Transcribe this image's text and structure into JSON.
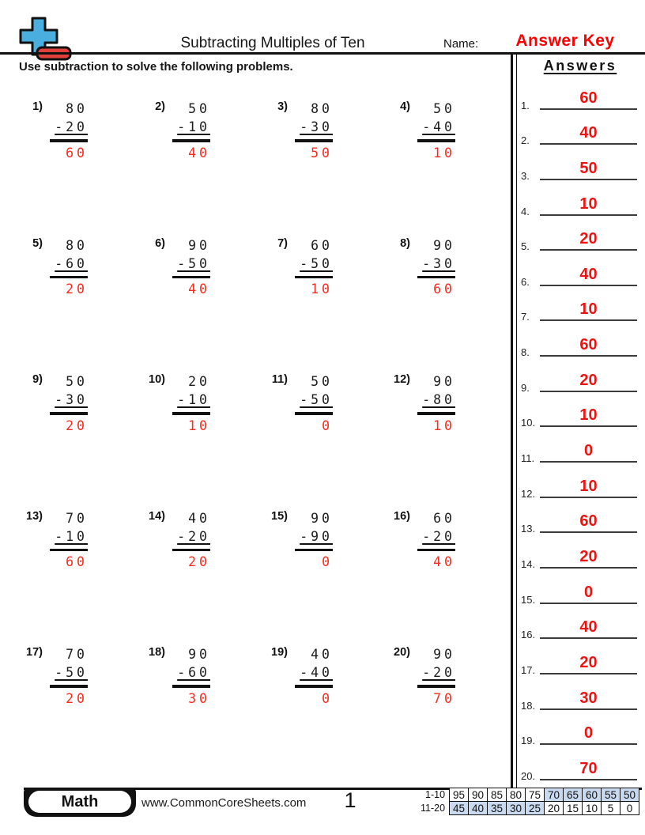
{
  "header": {
    "title": "Subtracting Multiples of Ten",
    "name_label": "Name:",
    "answer_key": "Answer Key"
  },
  "instruction": "Use subtraction to solve the following problems.",
  "problems": [
    {
      "num": "1)",
      "minuend": "80",
      "subtrahend": "-20",
      "answer": "60"
    },
    {
      "num": "2)",
      "minuend": "50",
      "subtrahend": "-10",
      "answer": "40"
    },
    {
      "num": "3)",
      "minuend": "80",
      "subtrahend": "-30",
      "answer": "50"
    },
    {
      "num": "4)",
      "minuend": "50",
      "subtrahend": "-40",
      "answer": "10"
    },
    {
      "num": "5)",
      "minuend": "80",
      "subtrahend": "-60",
      "answer": "20"
    },
    {
      "num": "6)",
      "minuend": "90",
      "subtrahend": "-50",
      "answer": "40"
    },
    {
      "num": "7)",
      "minuend": "60",
      "subtrahend": "-50",
      "answer": "10"
    },
    {
      "num": "8)",
      "minuend": "90",
      "subtrahend": "-30",
      "answer": "60"
    },
    {
      "num": "9)",
      "minuend": "50",
      "subtrahend": "-30",
      "answer": "20"
    },
    {
      "num": "10)",
      "minuend": "20",
      "subtrahend": "-10",
      "answer": "10"
    },
    {
      "num": "11)",
      "minuend": "50",
      "subtrahend": "-50",
      "answer": "0"
    },
    {
      "num": "12)",
      "minuend": "90",
      "subtrahend": "-80",
      "answer": "10"
    },
    {
      "num": "13)",
      "minuend": "70",
      "subtrahend": "-10",
      "answer": "60"
    },
    {
      "num": "14)",
      "minuend": "40",
      "subtrahend": "-20",
      "answer": "20"
    },
    {
      "num": "15)",
      "minuend": "90",
      "subtrahend": "-90",
      "answer": "0"
    },
    {
      "num": "16)",
      "minuend": "60",
      "subtrahend": "-20",
      "answer": "40"
    },
    {
      "num": "17)",
      "minuend": "70",
      "subtrahend": "-50",
      "answer": "20"
    },
    {
      "num": "18)",
      "minuend": "90",
      "subtrahend": "-60",
      "answer": "30"
    },
    {
      "num": "19)",
      "minuend": "40",
      "subtrahend": "-40",
      "answer": "0"
    },
    {
      "num": "20)",
      "minuend": "90",
      "subtrahend": "-20",
      "answer": "70"
    }
  ],
  "answers_panel": {
    "title": "Answers",
    "items": [
      {
        "num": "1.",
        "value": "60"
      },
      {
        "num": "2.",
        "value": "40"
      },
      {
        "num": "3.",
        "value": "50"
      },
      {
        "num": "4.",
        "value": "10"
      },
      {
        "num": "5.",
        "value": "20"
      },
      {
        "num": "6.",
        "value": "40"
      },
      {
        "num": "7.",
        "value": "10"
      },
      {
        "num": "8.",
        "value": "60"
      },
      {
        "num": "9.",
        "value": "20"
      },
      {
        "num": "10.",
        "value": "10"
      },
      {
        "num": "11.",
        "value": "0"
      },
      {
        "num": "12.",
        "value": "10"
      },
      {
        "num": "13.",
        "value": "60"
      },
      {
        "num": "14.",
        "value": "20"
      },
      {
        "num": "15.",
        "value": "0"
      },
      {
        "num": "16.",
        "value": "40"
      },
      {
        "num": "17.",
        "value": "20"
      },
      {
        "num": "18.",
        "value": "30"
      },
      {
        "num": "19.",
        "value": "0"
      },
      {
        "num": "20.",
        "value": "70"
      }
    ]
  },
  "footer": {
    "subject": "Math",
    "website": "www.CommonCoreSheets.com",
    "page": "1",
    "grade_table": {
      "rows": [
        {
          "label": "1-10",
          "cells": [
            {
              "v": "95",
              "hl": false
            },
            {
              "v": "90",
              "hl": false
            },
            {
              "v": "85",
              "hl": false
            },
            {
              "v": "80",
              "hl": false
            },
            {
              "v": "75",
              "hl": false
            },
            {
              "v": "70",
              "hl": true
            },
            {
              "v": "65",
              "hl": true
            },
            {
              "v": "60",
              "hl": true
            },
            {
              "v": "55",
              "hl": true
            },
            {
              "v": "50",
              "hl": true
            }
          ]
        },
        {
          "label": "11-20",
          "cells": [
            {
              "v": "45",
              "hl": true
            },
            {
              "v": "40",
              "hl": true
            },
            {
              "v": "35",
              "hl": true
            },
            {
              "v": "30",
              "hl": true
            },
            {
              "v": "25",
              "hl": true
            },
            {
              "v": "20",
              "hl": false
            },
            {
              "v": "15",
              "hl": false
            },
            {
              "v": "10",
              "hl": false
            },
            {
              "v": "5",
              "hl": false
            },
            {
              "v": "0",
              "hl": false
            }
          ]
        }
      ]
    }
  },
  "colors": {
    "answer_red": "#fa2a1f",
    "sidebar_answer_red": "#ea1512",
    "answer_key_red": "#ff0000",
    "grade_cell_blue": "#c9daf0",
    "logo_blue": "#4aaede",
    "logo_red": "#e2403a"
  }
}
